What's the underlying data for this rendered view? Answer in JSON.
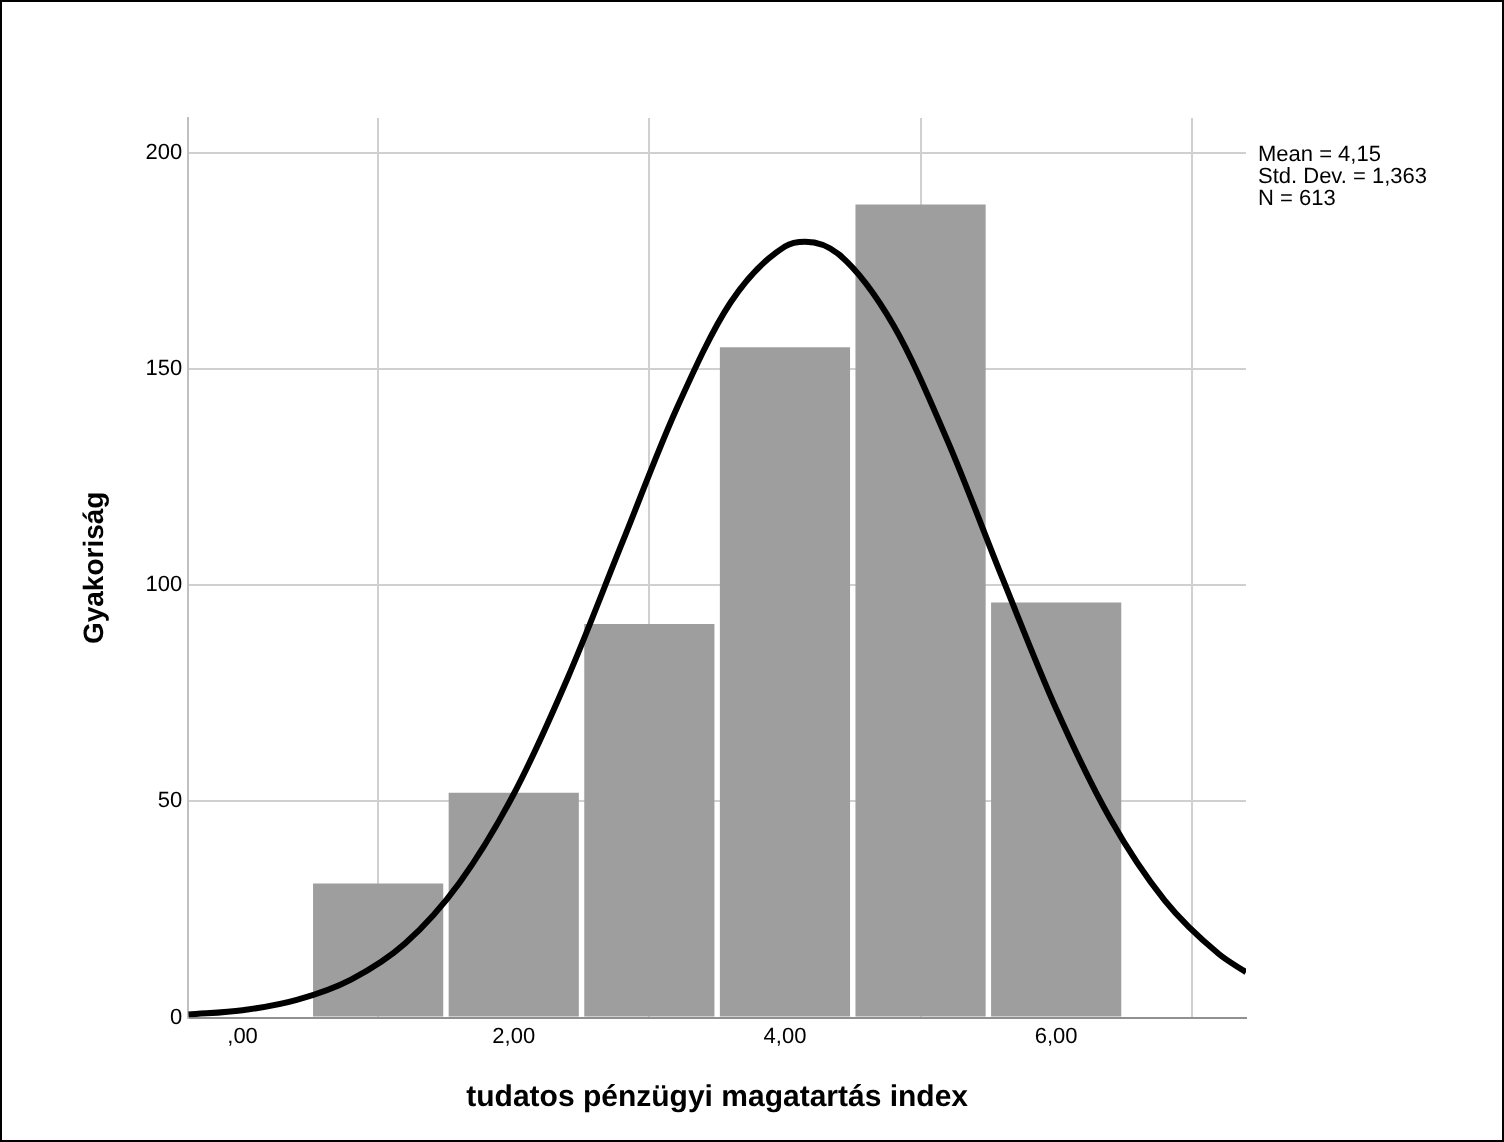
{
  "chart_data": {
    "type": "histogram",
    "xlabel": "tudatos pénzügyi magatartás index",
    "ylabel": "Gyakoriság",
    "annotations": [
      "Mean = 4,15",
      "Std. Dev. = 1,363",
      "N = 613"
    ],
    "bins": [
      0.5,
      1.5,
      2.5,
      3.5,
      4.5,
      5.5,
      6.5
    ],
    "series": [
      {
        "color": "#9e9e9e",
        "values": [
          31,
          52,
          91,
          155,
          188,
          96
        ]
      },
      {
        "type": "line",
        "color": "#000000",
        "x": [
          -0.4,
          0,
          0.4,
          0.8,
          1.2,
          1.6,
          2.0,
          2.4,
          2.8,
          3.2,
          3.6,
          4.0,
          4.15,
          4.4,
          4.8,
          5.2,
          5.6,
          6.0,
          6.4,
          6.8,
          7.2,
          7.4
        ],
        "values": [
          0.7,
          1.7,
          4.1,
          8.8,
          17.2,
          31.2,
          51.7,
          78.7,
          109.8,
          140.7,
          165.4,
          178.3,
          179.4,
          176.4,
          160.1,
          133.3,
          101.9,
          71.4,
          45.9,
          27.1,
          14.7,
          10.5
        ]
      }
    ],
    "xlim": [
      -0.4,
      7.4
    ],
    "xticks": [
      {
        "value": 0,
        "label": ",00"
      },
      {
        "value": 2,
        "label": "2,00"
      },
      {
        "value": 4,
        "label": "4,00"
      },
      {
        "value": 6,
        "label": "6,00"
      }
    ],
    "ylim": [
      0,
      208
    ],
    "yticks": [
      0,
      50,
      100,
      150,
      200
    ],
    "grid": true,
    "marker": "none",
    "line_style": "solid"
  }
}
